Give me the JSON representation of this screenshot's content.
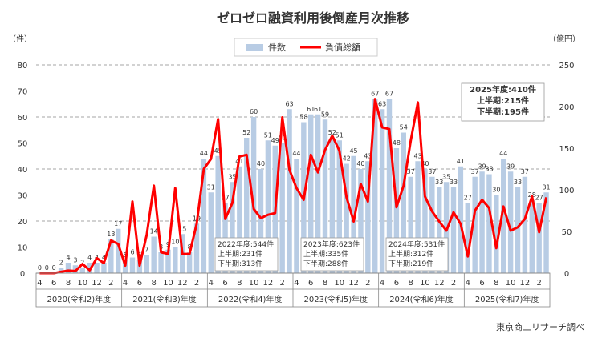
{
  "chart_data": {
    "type": "bar+line",
    "title": "ゼロゼロ融資利用後倒産月次推移",
    "left_axis": {
      "unit": "（件）",
      "ylim": [
        0,
        80
      ],
      "ticks": [
        0,
        10,
        20,
        30,
        40,
        50,
        60,
        70,
        80
      ]
    },
    "right_axis": {
      "unit": "（億円）",
      "ylim": [
        0,
        250
      ],
      "ticks": [
        0,
        50,
        100,
        150,
        200,
        250
      ]
    },
    "grid": "horizontal dashed",
    "legend": {
      "placement": "top-center",
      "entries": [
        "件数",
        "負債総額"
      ]
    },
    "month_ticks": [
      "4",
      "6",
      "8",
      "10",
      "12",
      "2"
    ],
    "fiscal_years": [
      "2020(令和2)年度",
      "2021(令和3)年度",
      "2022(令和4)年度",
      "2023(令和5)年度",
      "2024(令和6)年度",
      "2025(令和7)年度"
    ],
    "series": [
      {
        "name": "件数",
        "type": "bar",
        "color": "#b8cce4",
        "values": [
          0,
          0,
          0,
          2,
          4,
          3,
          2,
          4,
          4,
          4,
          13,
          17,
          5,
          6,
          5,
          7,
          14,
          8,
          9,
          10,
          15,
          8,
          19,
          44,
          31,
          45,
          27,
          35,
          41,
          52,
          60,
          40,
          51,
          49,
          50,
          63,
          44,
          58,
          61,
          61,
          59,
          52,
          51,
          42,
          45,
          40,
          43,
          67,
          63,
          67,
          48,
          54,
          37,
          43,
          40,
          37,
          33,
          35,
          33,
          41,
          27,
          37,
          39,
          38,
          30,
          44,
          39,
          33,
          37,
          28,
          27,
          31
        ]
      },
      {
        "name": "負債総額",
        "type": "line",
        "color": "#ff0000",
        "axis": "right",
        "values": [
          0,
          0,
          0,
          1.6,
          3,
          2.5,
          11,
          3.5,
          18,
          12,
          39,
          35,
          9,
          86,
          9,
          46,
          105,
          25,
          23,
          102,
          23,
          23,
          59,
          125,
          137,
          185,
          65,
          84,
          140,
          142,
          77,
          66,
          70,
          72,
          187,
          124,
          102,
          88,
          142,
          121,
          148,
          165,
          147,
          91,
          62,
          107,
          86,
          209,
          175,
          173,
          79,
          105,
          159,
          205,
          92,
          74,
          62,
          51,
          73,
          59,
          20,
          75,
          88,
          78,
          30,
          80,
          51,
          55,
          65,
          92,
          49,
          91
        ]
      }
    ],
    "annotations": [
      {
        "lines": [
          "2022年度:544件",
          "上半期:231件",
          "下半期:313件"
        ]
      },
      {
        "lines": [
          "2023年度:623件",
          "上半期:335件",
          "下半期:288件"
        ]
      },
      {
        "lines": [
          "2024年度:531件",
          "上半期:312件",
          "下半期:219件"
        ]
      },
      {
        "lines": [
          "2025年度:410件",
          "上半期:215件",
          "下半期:195件"
        ]
      }
    ],
    "source": "東京商工リサーチ調べ"
  }
}
